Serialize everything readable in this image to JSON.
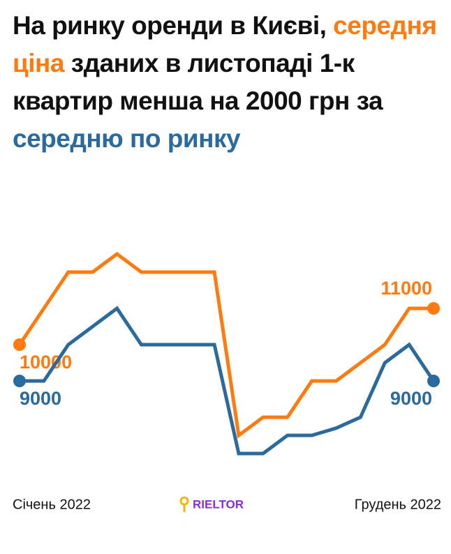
{
  "chart_data": {
    "type": "line",
    "title_parts": [
      {
        "text": "На ринку оренди в Києві, ",
        "color": "#111111"
      },
      {
        "text": "середня ціна",
        "color": "#ff7a0f"
      },
      {
        "text": " зданих в листопаді 1-к квартир менша на 2000 грн за ",
        "color": "#111111"
      },
      {
        "text": "середню по ринку",
        "color": "#2a6a9c"
      }
    ],
    "categories": [
      "Січень 2022",
      null,
      null,
      null,
      null,
      null,
      null,
      null,
      null,
      null,
      null,
      null,
      null,
      null,
      null,
      null,
      null,
      "Грудень 2022"
    ],
    "series": [
      {
        "color": "#ff7a0f",
        "values": [
          10000,
          11000,
          12000,
          12000,
          12500,
          12000,
          12000,
          12000,
          12000,
          7500,
          8000,
          8000,
          9000,
          9000,
          9500,
          10000,
          11000,
          11000
        ]
      },
      {
        "color": "#2a6a9c",
        "values": [
          9000,
          9000,
          10000,
          10500,
          11000,
          10000,
          10000,
          10000,
          10000,
          7000,
          7000,
          7500,
          7500,
          7700,
          8000,
          9500,
          10000,
          9000
        ]
      }
    ],
    "ylim": [
      6500,
      13000
    ],
    "logo": "RIELTOR"
  }
}
